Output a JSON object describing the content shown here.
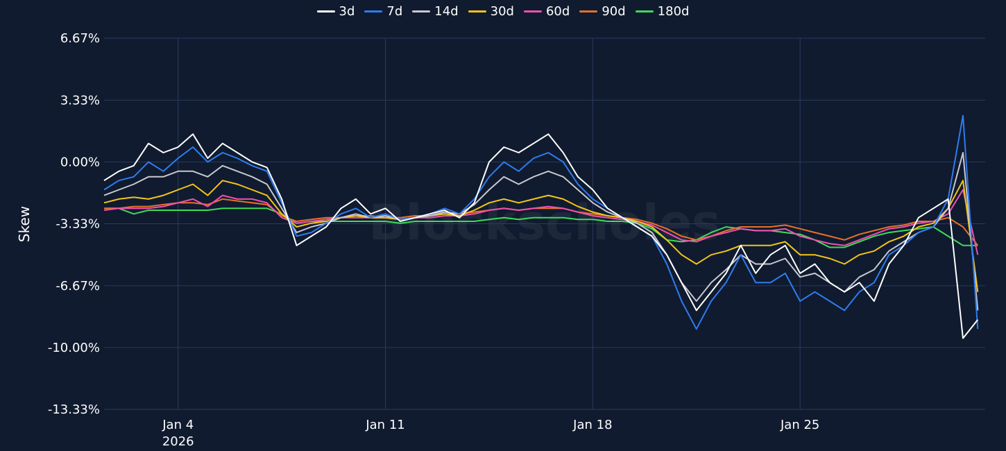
{
  "chart_data": {
    "type": "line",
    "watermark": "Blockscholes",
    "ylabel": "Skew",
    "y_ticks": [
      "6.67%",
      "3.33%",
      "0.00%",
      "-3.33%",
      "-6.67%",
      "-10.00%",
      "-13.33%"
    ],
    "y_tick_values": [
      6.67,
      3.33,
      0,
      -3.33,
      -6.67,
      -10,
      -13.33
    ],
    "ylim": [
      -13.33,
      6.67
    ],
    "x_ticks": [
      {
        "date": "2026-01-04",
        "label": "Jan 4",
        "sublabel": "2026"
      },
      {
        "date": "2026-01-11",
        "label": "Jan 11",
        "sublabel": ""
      },
      {
        "date": "2026-01-18",
        "label": "Jan 18",
        "sublabel": ""
      },
      {
        "date": "2026-01-25",
        "label": "Jan 25",
        "sublabel": ""
      }
    ],
    "xlim": [
      "2026-01-01T12:00",
      "2026-01-31T06:00"
    ],
    "grid": true,
    "legend_position": "top-center",
    "x": [
      "2026-01-01T12:00",
      "2026-01-02T00:00",
      "2026-01-02T12:00",
      "2026-01-03T00:00",
      "2026-01-03T12:00",
      "2026-01-04T00:00",
      "2026-01-04T12:00",
      "2026-01-05T00:00",
      "2026-01-05T12:00",
      "2026-01-06T00:00",
      "2026-01-06T12:00",
      "2026-01-07T00:00",
      "2026-01-07T12:00",
      "2026-01-08T00:00",
      "2026-01-08T12:00",
      "2026-01-09T00:00",
      "2026-01-09T12:00",
      "2026-01-10T00:00",
      "2026-01-10T12:00",
      "2026-01-11T00:00",
      "2026-01-11T12:00",
      "2026-01-12T00:00",
      "2026-01-12T12:00",
      "2026-01-13T00:00",
      "2026-01-13T12:00",
      "2026-01-14T00:00",
      "2026-01-14T12:00",
      "2026-01-15T00:00",
      "2026-01-15T12:00",
      "2026-01-16T00:00",
      "2026-01-16T12:00",
      "2026-01-17T00:00",
      "2026-01-17T12:00",
      "2026-01-18T00:00",
      "2026-01-18T12:00",
      "2026-01-19T00:00",
      "2026-01-19T12:00",
      "2026-01-20T00:00",
      "2026-01-20T12:00",
      "2026-01-21T00:00",
      "2026-01-21T12:00",
      "2026-01-22T00:00",
      "2026-01-22T12:00",
      "2026-01-23T00:00",
      "2026-01-23T12:00",
      "2026-01-24T00:00",
      "2026-01-24T12:00",
      "2026-01-25T00:00",
      "2026-01-25T12:00",
      "2026-01-26T00:00",
      "2026-01-26T12:00",
      "2026-01-27T00:00",
      "2026-01-27T12:00",
      "2026-01-28T00:00",
      "2026-01-28T12:00",
      "2026-01-29T00:00",
      "2026-01-29T12:00",
      "2026-01-30T00:00",
      "2026-01-30T12:00",
      "2026-01-31T00:00"
    ],
    "series": [
      {
        "name": "3d",
        "color": "#ffffff",
        "values": [
          -1.0,
          -0.5,
          -0.2,
          1.0,
          0.5,
          0.8,
          1.5,
          0.2,
          1.0,
          0.5,
          0.0,
          -0.3,
          -2.0,
          -4.5,
          -4.0,
          -3.5,
          -2.5,
          -2.0,
          -2.8,
          -2.5,
          -3.2,
          -3.0,
          -2.8,
          -2.6,
          -3.0,
          -2.2,
          0.0,
          0.8,
          0.5,
          1.0,
          1.5,
          0.5,
          -0.8,
          -1.5,
          -2.5,
          -3.0,
          -3.5,
          -4.0,
          -5.0,
          -6.5,
          -8.0,
          -7.0,
          -6.0,
          -4.5,
          -6.0,
          -5.0,
          -4.5,
          -6.0,
          -5.5,
          -6.5,
          -7.0,
          -6.5,
          -7.5,
          -5.5,
          -4.5,
          -3.0,
          -2.5,
          -2.0,
          -9.5,
          -8.5
        ]
      },
      {
        "name": "7d",
        "color": "#2f7cf0",
        "values": [
          -1.5,
          -1.0,
          -0.8,
          0.0,
          -0.5,
          0.2,
          0.8,
          0.0,
          0.5,
          0.2,
          -0.2,
          -0.5,
          -2.2,
          -4.0,
          -3.8,
          -3.3,
          -2.8,
          -2.5,
          -3.0,
          -2.8,
          -3.1,
          -3.0,
          -2.8,
          -2.5,
          -2.8,
          -2.0,
          -0.8,
          0.0,
          -0.5,
          0.2,
          0.5,
          0.0,
          -1.2,
          -2.0,
          -2.5,
          -3.0,
          -3.5,
          -4.0,
          -5.5,
          -7.5,
          -9.0,
          -7.5,
          -6.5,
          -5.0,
          -6.5,
          -6.5,
          -6.0,
          -7.5,
          -7.0,
          -7.5,
          -8.0,
          -7.0,
          -6.5,
          -5.0,
          -4.5,
          -3.8,
          -3.5,
          -2.0,
          2.5,
          -9.0
        ]
      },
      {
        "name": "14d",
        "color": "#c8c8d0",
        "values": [
          -1.8,
          -1.5,
          -1.2,
          -0.8,
          -0.8,
          -0.5,
          -0.5,
          -0.8,
          -0.2,
          -0.5,
          -0.8,
          -1.2,
          -2.5,
          -3.8,
          -3.5,
          -3.3,
          -3.0,
          -2.8,
          -3.0,
          -2.9,
          -3.1,
          -3.0,
          -2.9,
          -2.7,
          -2.8,
          -2.3,
          -1.5,
          -0.8,
          -1.2,
          -0.8,
          -0.5,
          -0.8,
          -1.5,
          -2.2,
          -2.7,
          -3.0,
          -3.3,
          -3.8,
          -5.0,
          -6.5,
          -7.5,
          -6.5,
          -5.8,
          -5.0,
          -5.5,
          -5.5,
          -5.2,
          -6.2,
          -6.0,
          -6.5,
          -7.0,
          -6.2,
          -5.8,
          -4.8,
          -4.3,
          -3.8,
          -3.5,
          -2.5,
          0.5,
          -8.0
        ]
      },
      {
        "name": "30d",
        "color": "#f5c518",
        "values": [
          -2.2,
          -2.0,
          -1.9,
          -2.0,
          -1.8,
          -1.5,
          -1.2,
          -1.8,
          -1.0,
          -1.2,
          -1.5,
          -1.8,
          -2.8,
          -3.5,
          -3.3,
          -3.2,
          -3.0,
          -2.9,
          -3.0,
          -3.0,
          -3.1,
          -3.0,
          -2.9,
          -2.8,
          -2.9,
          -2.6,
          -2.2,
          -2.0,
          -2.2,
          -2.0,
          -1.8,
          -2.0,
          -2.4,
          -2.7,
          -2.9,
          -3.0,
          -3.2,
          -3.5,
          -4.2,
          -5.0,
          -5.5,
          -5.0,
          -4.8,
          -4.5,
          -4.5,
          -4.5,
          -4.3,
          -5.0,
          -5.0,
          -5.2,
          -5.5,
          -5.0,
          -4.8,
          -4.3,
          -4.0,
          -3.5,
          -3.3,
          -2.5,
          -1.0,
          -7.0
        ]
      },
      {
        "name": "60d",
        "color": "#f050b0",
        "values": [
          -2.6,
          -2.5,
          -2.5,
          -2.5,
          -2.4,
          -2.2,
          -2.0,
          -2.4,
          -1.8,
          -2.0,
          -2.0,
          -2.2,
          -3.0,
          -3.3,
          -3.2,
          -3.1,
          -3.0,
          -3.0,
          -3.0,
          -3.0,
          -3.1,
          -3.0,
          -3.0,
          -2.9,
          -2.9,
          -2.8,
          -2.6,
          -2.5,
          -2.6,
          -2.5,
          -2.4,
          -2.5,
          -2.7,
          -2.9,
          -3.0,
          -3.1,
          -3.2,
          -3.4,
          -3.8,
          -4.2,
          -4.3,
          -4.0,
          -3.8,
          -3.6,
          -3.7,
          -3.7,
          -3.6,
          -4.0,
          -4.2,
          -4.4,
          -4.5,
          -4.2,
          -3.9,
          -3.6,
          -3.5,
          -3.3,
          -3.2,
          -2.8,
          -1.5,
          -5.0
        ]
      },
      {
        "name": "90d",
        "color": "#e8702a",
        "values": [
          -2.5,
          -2.5,
          -2.4,
          -2.4,
          -2.3,
          -2.2,
          -2.2,
          -2.3,
          -2.0,
          -2.1,
          -2.2,
          -2.3,
          -2.9,
          -3.2,
          -3.1,
          -3.0,
          -3.0,
          -2.9,
          -2.9,
          -3.0,
          -3.0,
          -2.9,
          -2.9,
          -2.8,
          -2.8,
          -2.7,
          -2.6,
          -2.5,
          -2.6,
          -2.5,
          -2.5,
          -2.5,
          -2.7,
          -2.8,
          -2.9,
          -3.0,
          -3.1,
          -3.3,
          -3.6,
          -4.0,
          -4.2,
          -4.0,
          -3.7,
          -3.5,
          -3.5,
          -3.5,
          -3.4,
          -3.6,
          -3.8,
          -4.0,
          -4.2,
          -3.9,
          -3.7,
          -3.5,
          -3.4,
          -3.2,
          -3.2,
          -3.0,
          -3.5,
          -4.5
        ]
      },
      {
        "name": "180d",
        "color": "#3ddc5c",
        "values": [
          -2.5,
          -2.5,
          -2.8,
          -2.6,
          -2.6,
          -2.6,
          -2.6,
          -2.6,
          -2.5,
          -2.5,
          -2.5,
          -2.5,
          -2.8,
          -3.3,
          -3.2,
          -3.2,
          -3.2,
          -3.2,
          -3.2,
          -3.2,
          -3.3,
          -3.2,
          -3.2,
          -3.2,
          -3.2,
          -3.2,
          -3.1,
          -3.0,
          -3.1,
          -3.0,
          -3.0,
          -3.0,
          -3.1,
          -3.1,
          -3.2,
          -3.2,
          -3.3,
          -3.6,
          -4.2,
          -4.3,
          -4.2,
          -3.8,
          -3.5,
          -3.6,
          -3.7,
          -3.7,
          -3.8,
          -3.9,
          -4.2,
          -4.6,
          -4.6,
          -4.3,
          -4.0,
          -3.8,
          -3.7,
          -3.6,
          -3.5,
          -4.0,
          -4.5,
          -4.5
        ]
      }
    ]
  }
}
